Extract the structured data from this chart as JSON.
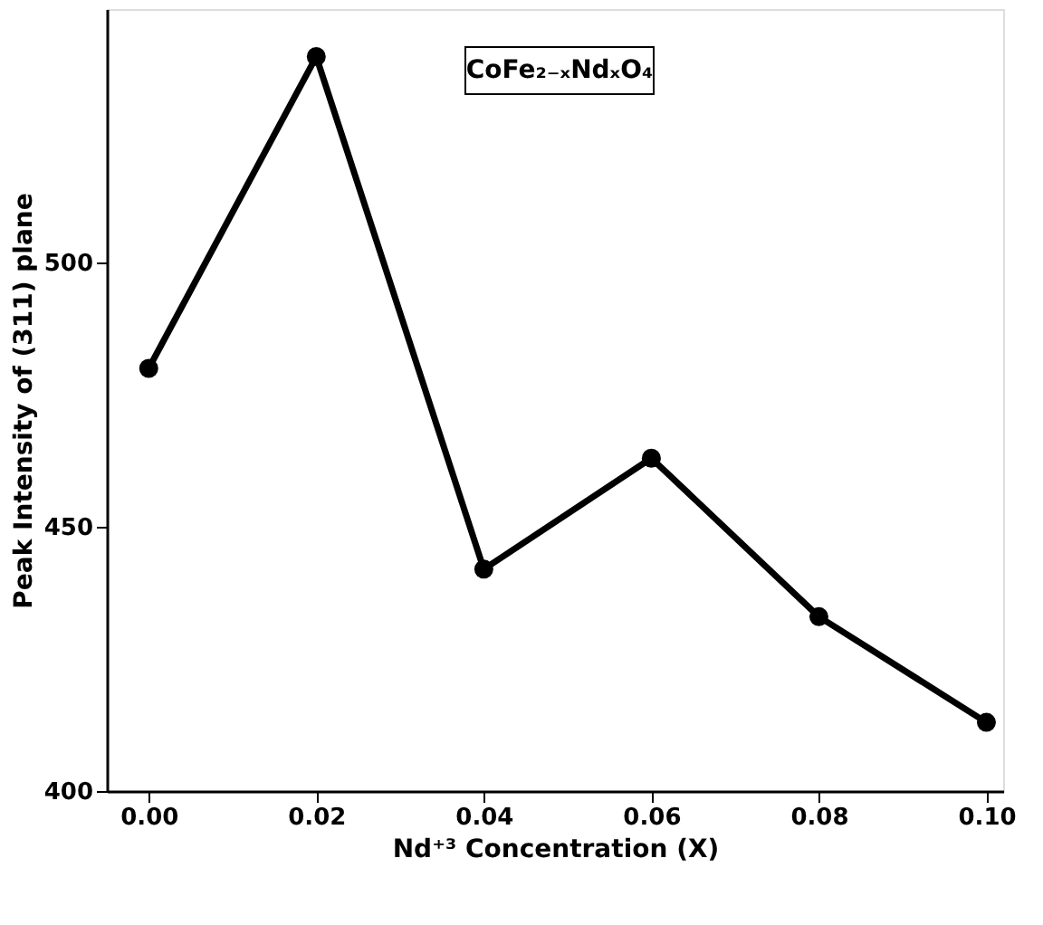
{
  "chart_data": {
    "type": "line",
    "xlabel": "Nd⁺³ Concentration (X)",
    "ylabel": "Peak Intensity of (311) plane",
    "annotations": [
      "CoFe₂₋ₓNdₓO₄"
    ],
    "x": [
      0.0,
      0.02,
      0.04,
      0.06,
      0.08,
      0.1
    ],
    "series": [
      {
        "color": "#000000",
        "values": [
          480,
          539,
          442,
          463,
          433,
          413
        ]
      }
    ],
    "xlim": [
      -0.005,
      0.102
    ],
    "xticks": [
      {
        "value": 0.0,
        "label": "0.00"
      },
      {
        "value": 0.02,
        "label": "0.02"
      },
      {
        "value": 0.04,
        "label": "0.04"
      },
      {
        "value": 0.06,
        "label": "0.06"
      },
      {
        "value": 0.08,
        "label": "0.08"
      },
      {
        "value": 0.1,
        "label": "0.10"
      }
    ],
    "ylim": [
      400,
      548
    ],
    "yticks": [
      400,
      450,
      500
    ],
    "marker": "circle",
    "line_style": "solid",
    "grid": false
  }
}
